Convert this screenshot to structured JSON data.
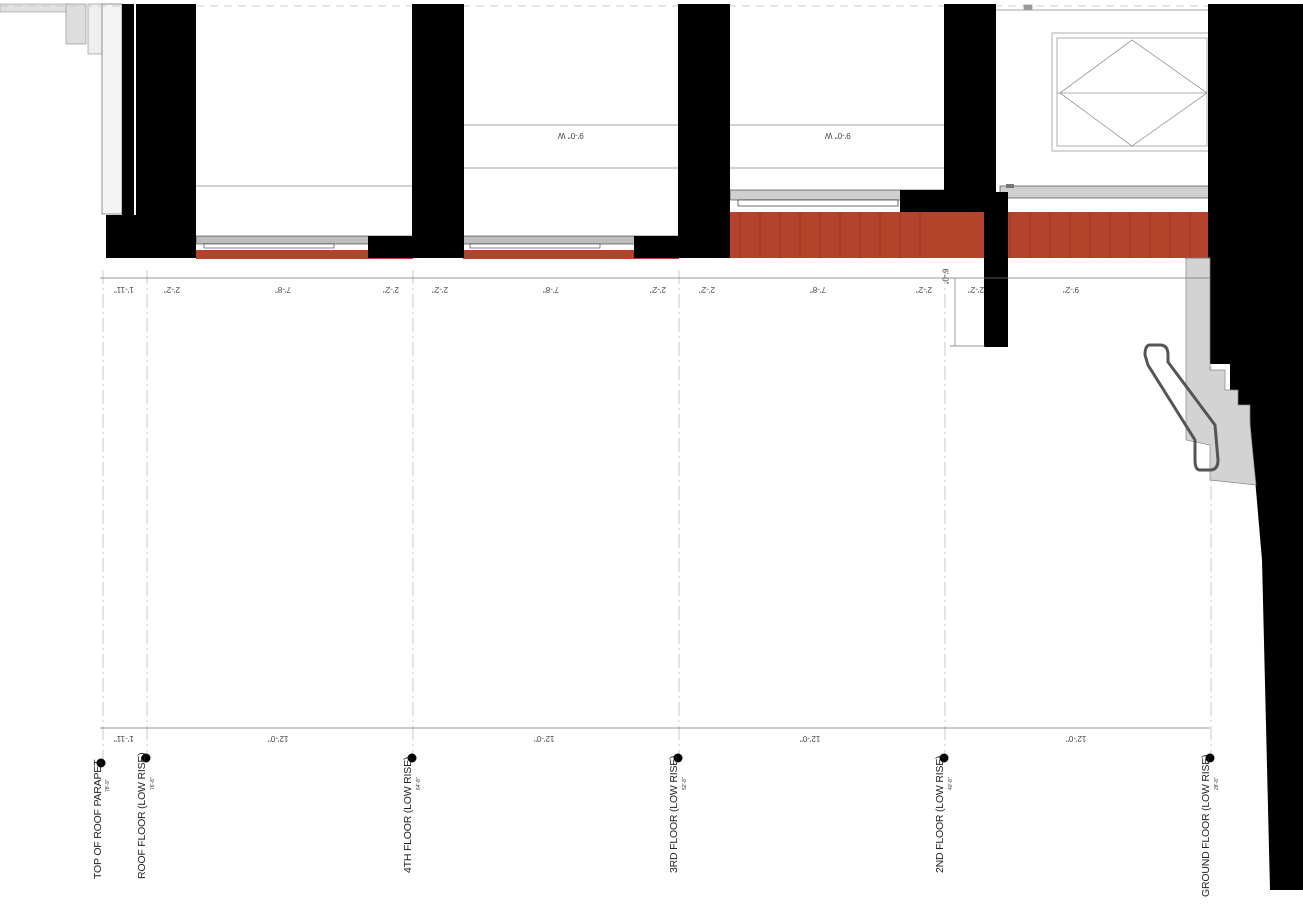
{
  "levels": [
    {
      "name": "TOP OF ROOF PARAPET",
      "elev": "78'-9\""
    },
    {
      "name": "ROOF FLOOR (LOW RISE)",
      "elev": "76'-8\""
    },
    {
      "name": "4TH FLOOR (LOW RISE)",
      "elev": "64'-8\""
    },
    {
      "name": "3RD FLOOR (LOW RISE)",
      "elev": "52'-8\""
    },
    {
      "name": "2ND FLOOR (LOW RISE)",
      "elev": "40'-8\""
    },
    {
      "name": "GROUND FLOOR (LOW RISE)",
      "elev": "28'-8\""
    }
  ],
  "dims_top": [
    "1'-11\"",
    "2'-2\"",
    "7'-8\"",
    "2'-2\"",
    "2'-2\"",
    "7'-8\"",
    "2'-2\"",
    "2'-2\"",
    "7'-8\"",
    "2'-2\"",
    "2'-2\"",
    "9'-2\"",
    "6'-0\""
  ],
  "dims_bottom": [
    "1'-11\"",
    "12'-0\"",
    "12'-0\"",
    "12'-0\"",
    "12'-0\""
  ],
  "notes": [
    "9'-0\" W",
    "9'-0\" W"
  ]
}
